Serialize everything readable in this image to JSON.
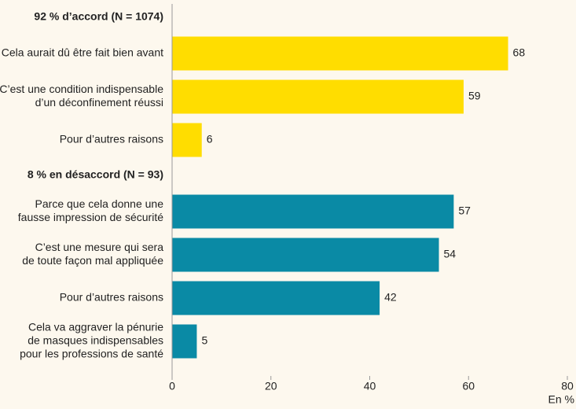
{
  "chart_data": {
    "type": "bar",
    "groups": [
      {
        "label": "92 % d’accord (N = 1074)",
        "color": "#ffdd00",
        "categories": [
          [
            "Cela aurait dû être fait bien avant"
          ],
          [
            "C’est une condition indispensable",
            "d’un déconfinement réussi"
          ],
          [
            "Pour d’autres raisons"
          ]
        ],
        "values": [
          68,
          59,
          6
        ]
      },
      {
        "label": "8 % en désaccord (N = 93)",
        "color": "#0a8aa5",
        "categories": [
          [
            "Parce que cela donne une",
            "fausse impression de sécurité"
          ],
          [
            "C’est une mesure qui sera",
            "de toute façon mal appliquée"
          ],
          [
            "Pour d’autres raisons"
          ],
          [
            "Cela va aggraver la pénurie",
            "de masques indispensables",
            "pour les professions de santé"
          ]
        ],
        "values": [
          57,
          54,
          42,
          5
        ]
      }
    ],
    "xlim": [
      0,
      80
    ],
    "xticks": [
      0,
      20,
      40,
      60,
      80
    ],
    "xlabel": "En %"
  }
}
